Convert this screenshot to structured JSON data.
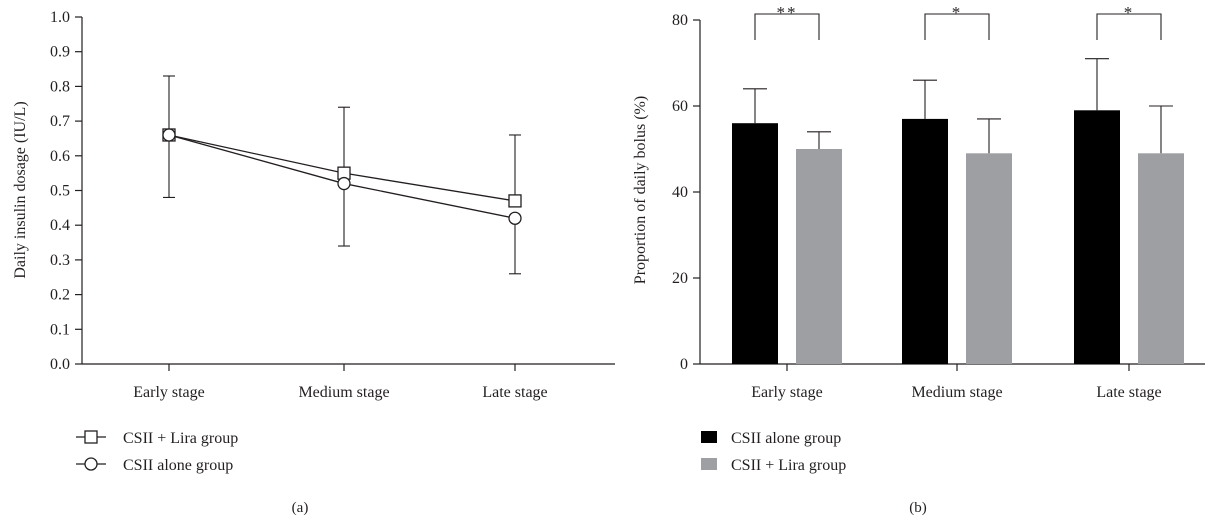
{
  "chart_data": [
    {
      "type": "line",
      "panel_label": "(a)",
      "xlabel": "",
      "ylabel": "Daily insulin dosage (IU/L)",
      "categories": [
        "Early stage",
        "Medium stage",
        "Late stage"
      ],
      "ylim": [
        0.0,
        1.0
      ],
      "yticks": [
        "0.0",
        "0.1",
        "0.2",
        "0.3",
        "0.4",
        "0.5",
        "0.6",
        "0.7",
        "0.8",
        "0.9",
        "1.0"
      ],
      "grid": false,
      "legend_position": "bottom-left",
      "series": [
        {
          "name": "CSII + Lira group",
          "marker": "square",
          "values": [
            0.66,
            0.55,
            0.47
          ],
          "error_upper": [
            0.83,
            0.74,
            0.66
          ]
        },
        {
          "name": "CSII alone group",
          "marker": "circle",
          "values": [
            0.66,
            0.52,
            0.42
          ],
          "error_lower": [
            0.48,
            0.34,
            0.26
          ]
        }
      ]
    },
    {
      "type": "bar",
      "panel_label": "(b)",
      "xlabel": "",
      "ylabel": "Proportion of daily bolus (%)",
      "categories": [
        "Early stage",
        "Medium stage",
        "Late stage"
      ],
      "ylim": [
        0,
        80
      ],
      "yticks": [
        "0",
        "20",
        "40",
        "60",
        "80"
      ],
      "grid": false,
      "legend_position": "bottom-left",
      "series": [
        {
          "name": "CSII alone group",
          "color": "#000000",
          "values": [
            56,
            57,
            59
          ],
          "error_upper": [
            64,
            66,
            71
          ]
        },
        {
          "name": "CSII + Lira group",
          "color": "#9d9fa2",
          "values": [
            50,
            49,
            49
          ],
          "error_upper": [
            54,
            57,
            60
          ]
        }
      ],
      "significance": [
        "**",
        "*",
        "*"
      ]
    }
  ]
}
